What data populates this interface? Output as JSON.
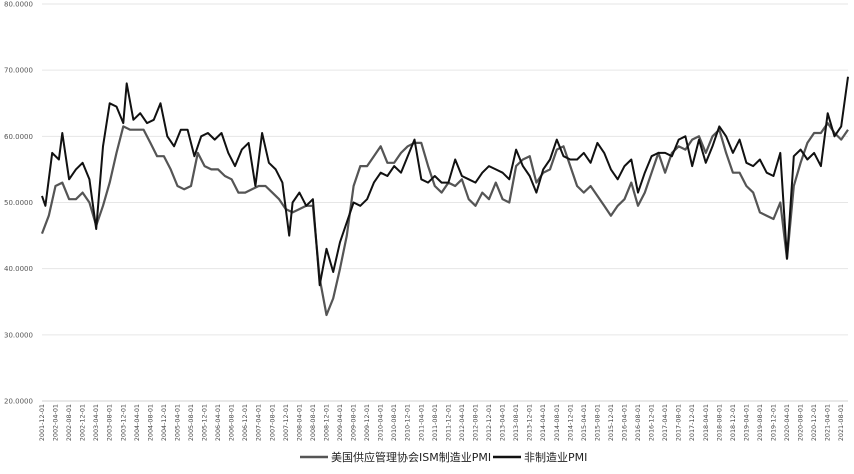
{
  "chart_data": {
    "type": "line",
    "title": "",
    "xlabel": "",
    "ylabel": "",
    "ylim": [
      20,
      80
    ],
    "y_ticks": [
      "20.0000",
      "30.0000",
      "40.0000",
      "50.0000",
      "60.0000",
      "70.0000",
      "80.0000"
    ],
    "grid": "horizontal",
    "legend_position": "bottom",
    "x_start": "2001-12",
    "x_end": "2021-10",
    "x_ticks": [
      "2001-12-01",
      "2002-04-01",
      "2002-08-01",
      "2002-12-01",
      "2003-04-01",
      "2003-08-01",
      "2003-12-01",
      "2004-04-01",
      "2004-08-01",
      "2004-12-01",
      "2005-04-01",
      "2005-08-01",
      "2005-12-01",
      "2006-04-01",
      "2006-08-01",
      "2006-12-01",
      "2007-04-01",
      "2007-08-01",
      "2007-12-01",
      "2008-04-01",
      "2008-08-01",
      "2008-12-01",
      "2009-04-01",
      "2009-08-01",
      "2009-12-01",
      "2010-04-01",
      "2010-08-01",
      "2010-12-01",
      "2011-04-01",
      "2011-08-01",
      "2011-12-01",
      "2012-04-01",
      "2012-08-01",
      "2012-12-01",
      "2013-04-01",
      "2013-08-01",
      "2013-12-01",
      "2014-04-01",
      "2014-08-01",
      "2014-12-01",
      "2015-04-01",
      "2015-08-01",
      "2015-12-01",
      "2016-04-01",
      "2016-08-01",
      "2016-12-01",
      "2017-04-01",
      "2017-08-01",
      "2017-12-01",
      "2018-04-01",
      "2018-08-01",
      "2018-12-01",
      "2019-04-01",
      "2019-08-01",
      "2019-12-01",
      "2020-04-01",
      "2020-08-01",
      "2020-12-01",
      "2021-04-01",
      "2021-08-01"
    ],
    "series": [
      {
        "name": "美国供应管理协会ISM制造业PMI",
        "color": "#555555",
        "points": [
          [
            "2001-12",
            45.3
          ],
          [
            "2002-02",
            48.0
          ],
          [
            "2002-04",
            52.5
          ],
          [
            "2002-06",
            53.0
          ],
          [
            "2002-08",
            50.5
          ],
          [
            "2002-10",
            50.5
          ],
          [
            "2002-12",
            51.5
          ],
          [
            "2003-02",
            50.0
          ],
          [
            "2003-04",
            46.5
          ],
          [
            "2003-06",
            49.5
          ],
          [
            "2003-08",
            53.0
          ],
          [
            "2003-10",
            57.5
          ],
          [
            "2003-12",
            61.5
          ],
          [
            "2004-02",
            61.0
          ],
          [
            "2004-04",
            61.0
          ],
          [
            "2004-06",
            61.0
          ],
          [
            "2004-08",
            59.0
          ],
          [
            "2004-10",
            57.0
          ],
          [
            "2004-12",
            57.0
          ],
          [
            "2005-02",
            55.0
          ],
          [
            "2005-04",
            52.5
          ],
          [
            "2005-06",
            52.0
          ],
          [
            "2005-08",
            52.5
          ],
          [
            "2005-10",
            57.5
          ],
          [
            "2005-12",
            55.5
          ],
          [
            "2006-02",
            55.0
          ],
          [
            "2006-04",
            55.0
          ],
          [
            "2006-06",
            54.0
          ],
          [
            "2006-08",
            53.5
          ],
          [
            "2006-10",
            51.5
          ],
          [
            "2006-12",
            51.5
          ],
          [
            "2007-02",
            52.0
          ],
          [
            "2007-04",
            52.5
          ],
          [
            "2007-06",
            52.5
          ],
          [
            "2007-08",
            51.5
          ],
          [
            "2007-10",
            50.5
          ],
          [
            "2007-12",
            49.0
          ],
          [
            "2008-02",
            48.5
          ],
          [
            "2008-04",
            49.0
          ],
          [
            "2008-06",
            49.5
          ],
          [
            "2008-08",
            49.5
          ],
          [
            "2008-10",
            38.5
          ],
          [
            "2008-12",
            33.0
          ],
          [
            "2009-02",
            35.5
          ],
          [
            "2009-04",
            40.0
          ],
          [
            "2009-06",
            45.0
          ],
          [
            "2009-08",
            52.5
          ],
          [
            "2009-10",
            55.5
          ],
          [
            "2009-12",
            55.5
          ],
          [
            "2010-02",
            57.0
          ],
          [
            "2010-04",
            58.5
          ],
          [
            "2010-06",
            56.0
          ],
          [
            "2010-08",
            56.0
          ],
          [
            "2010-10",
            57.5
          ],
          [
            "2010-12",
            58.5
          ],
          [
            "2011-02",
            59.0
          ],
          [
            "2011-04",
            59.0
          ],
          [
            "2011-06",
            55.5
          ],
          [
            "2011-08",
            52.5
          ],
          [
            "2011-10",
            51.5
          ],
          [
            "2011-12",
            53.0
          ],
          [
            "2012-02",
            52.5
          ],
          [
            "2012-04",
            53.5
          ],
          [
            "2012-06",
            50.5
          ],
          [
            "2012-08",
            49.5
          ],
          [
            "2012-10",
            51.5
          ],
          [
            "2012-12",
            50.5
          ],
          [
            "2013-02",
            53.0
          ],
          [
            "2013-04",
            50.5
          ],
          [
            "2013-06",
            50.0
          ],
          [
            "2013-08",
            55.5
          ],
          [
            "2013-10",
            56.5
          ],
          [
            "2013-12",
            57.0
          ],
          [
            "2014-02",
            53.0
          ],
          [
            "2014-04",
            54.5
          ],
          [
            "2014-06",
            55.0
          ],
          [
            "2014-08",
            58.0
          ],
          [
            "2014-10",
            58.5
          ],
          [
            "2014-12",
            55.5
          ],
          [
            "2015-02",
            52.5
          ],
          [
            "2015-04",
            51.5
          ],
          [
            "2015-06",
            52.5
          ],
          [
            "2015-08",
            51.0
          ],
          [
            "2015-10",
            49.5
          ],
          [
            "2015-12",
            48.0
          ],
          [
            "2016-02",
            49.5
          ],
          [
            "2016-04",
            50.5
          ],
          [
            "2016-06",
            53.0
          ],
          [
            "2016-08",
            49.5
          ],
          [
            "2016-10",
            51.5
          ],
          [
            "2016-12",
            54.5
          ],
          [
            "2017-02",
            57.5
          ],
          [
            "2017-04",
            54.5
          ],
          [
            "2017-06",
            57.5
          ],
          [
            "2017-08",
            58.5
          ],
          [
            "2017-10",
            58.0
          ],
          [
            "2017-12",
            59.5
          ],
          [
            "2018-02",
            60.0
          ],
          [
            "2018-04",
            57.5
          ],
          [
            "2018-06",
            60.0
          ],
          [
            "2018-08",
            61.0
          ],
          [
            "2018-10",
            57.5
          ],
          [
            "2018-12",
            54.5
          ],
          [
            "2019-02",
            54.5
          ],
          [
            "2019-04",
            52.5
          ],
          [
            "2019-06",
            51.5
          ],
          [
            "2019-08",
            48.5
          ],
          [
            "2019-10",
            48.0
          ],
          [
            "2019-12",
            47.5
          ],
          [
            "2020-02",
            50.0
          ],
          [
            "2020-04",
            41.5
          ],
          [
            "2020-06",
            52.5
          ],
          [
            "2020-08",
            56.0
          ],
          [
            "2020-10",
            59.0
          ],
          [
            "2020-12",
            60.5
          ],
          [
            "2021-02",
            60.5
          ],
          [
            "2021-04",
            62.0
          ],
          [
            "2021-06",
            60.5
          ],
          [
            "2021-08",
            59.5
          ],
          [
            "2021-10",
            61.0
          ]
        ]
      },
      {
        "name": "非制造业PMI",
        "color": "#111111",
        "points": [
          [
            "2001-12",
            51.0
          ],
          [
            "2002-01",
            49.5
          ],
          [
            "2002-03",
            57.5
          ],
          [
            "2002-05",
            56.5
          ],
          [
            "2002-06",
            60.5
          ],
          [
            "2002-08",
            53.5
          ],
          [
            "2002-10",
            55.0
          ],
          [
            "2002-12",
            56.0
          ],
          [
            "2003-02",
            53.5
          ],
          [
            "2003-04",
            46.0
          ],
          [
            "2003-06",
            58.5
          ],
          [
            "2003-08",
            65.0
          ],
          [
            "2003-10",
            64.5
          ],
          [
            "2003-12",
            62.0
          ],
          [
            "2004-01",
            68.0
          ],
          [
            "2004-03",
            62.5
          ],
          [
            "2004-05",
            63.5
          ],
          [
            "2004-07",
            62.0
          ],
          [
            "2004-09",
            62.5
          ],
          [
            "2004-11",
            65.0
          ],
          [
            "2005-01",
            60.0
          ],
          [
            "2005-03",
            58.5
          ],
          [
            "2005-05",
            61.0
          ],
          [
            "2005-07",
            61.0
          ],
          [
            "2005-09",
            57.0
          ],
          [
            "2005-11",
            60.0
          ],
          [
            "2006-01",
            60.5
          ],
          [
            "2006-03",
            59.5
          ],
          [
            "2006-05",
            60.5
          ],
          [
            "2006-07",
            57.5
          ],
          [
            "2006-09",
            55.5
          ],
          [
            "2006-11",
            58.0
          ],
          [
            "2007-01",
            59.0
          ],
          [
            "2007-03",
            52.5
          ],
          [
            "2007-05",
            60.5
          ],
          [
            "2007-07",
            56.0
          ],
          [
            "2007-09",
            55.0
          ],
          [
            "2007-11",
            53.0
          ],
          [
            "2008-01",
            45.0
          ],
          [
            "2008-02",
            50.0
          ],
          [
            "2008-04",
            51.5
          ],
          [
            "2008-06",
            49.5
          ],
          [
            "2008-08",
            50.5
          ],
          [
            "2008-10",
            37.5
          ],
          [
            "2008-12",
            43.0
          ],
          [
            "2009-02",
            39.5
          ],
          [
            "2009-04",
            44.0
          ],
          [
            "2009-06",
            47.0
          ],
          [
            "2009-08",
            50.0
          ],
          [
            "2009-10",
            49.5
          ],
          [
            "2009-12",
            50.5
          ],
          [
            "2010-02",
            53.0
          ],
          [
            "2010-04",
            54.5
          ],
          [
            "2010-06",
            54.0
          ],
          [
            "2010-08",
            55.5
          ],
          [
            "2010-10",
            54.5
          ],
          [
            "2010-12",
            57.0
          ],
          [
            "2011-02",
            59.5
          ],
          [
            "2011-04",
            53.5
          ],
          [
            "2011-06",
            53.0
          ],
          [
            "2011-08",
            54.0
          ],
          [
            "2011-10",
            53.0
          ],
          [
            "2011-12",
            53.0
          ],
          [
            "2012-02",
            56.5
          ],
          [
            "2012-04",
            54.0
          ],
          [
            "2012-06",
            53.5
          ],
          [
            "2012-08",
            53.0
          ],
          [
            "2012-10",
            54.5
          ],
          [
            "2012-12",
            55.5
          ],
          [
            "2013-02",
            55.0
          ],
          [
            "2013-04",
            54.5
          ],
          [
            "2013-06",
            53.5
          ],
          [
            "2013-08",
            58.0
          ],
          [
            "2013-10",
            55.5
          ],
          [
            "2013-12",
            54.0
          ],
          [
            "2014-02",
            51.5
          ],
          [
            "2014-04",
            55.0
          ],
          [
            "2014-06",
            56.5
          ],
          [
            "2014-08",
            59.5
          ],
          [
            "2014-10",
            57.0
          ],
          [
            "2014-12",
            56.5
          ],
          [
            "2015-02",
            56.5
          ],
          [
            "2015-04",
            57.5
          ],
          [
            "2015-06",
            56.0
          ],
          [
            "2015-08",
            59.0
          ],
          [
            "2015-10",
            57.5
          ],
          [
            "2015-12",
            55.0
          ],
          [
            "2016-02",
            53.5
          ],
          [
            "2016-04",
            55.5
          ],
          [
            "2016-06",
            56.5
          ],
          [
            "2016-08",
            51.5
          ],
          [
            "2016-10",
            54.5
          ],
          [
            "2016-12",
            57.0
          ],
          [
            "2017-02",
            57.5
          ],
          [
            "2017-04",
            57.5
          ],
          [
            "2017-06",
            57.0
          ],
          [
            "2017-08",
            59.5
          ],
          [
            "2017-10",
            60.0
          ],
          [
            "2017-12",
            55.5
          ],
          [
            "2018-02",
            59.5
          ],
          [
            "2018-04",
            56.0
          ],
          [
            "2018-06",
            58.5
          ],
          [
            "2018-08",
            61.5
          ],
          [
            "2018-10",
            60.0
          ],
          [
            "2018-12",
            57.5
          ],
          [
            "2019-02",
            59.5
          ],
          [
            "2019-04",
            56.0
          ],
          [
            "2019-06",
            55.5
          ],
          [
            "2019-08",
            56.5
          ],
          [
            "2019-10",
            54.5
          ],
          [
            "2019-12",
            54.0
          ],
          [
            "2020-02",
            57.5
          ],
          [
            "2020-04",
            41.5
          ],
          [
            "2020-06",
            57.0
          ],
          [
            "2020-08",
            58.0
          ],
          [
            "2020-10",
            56.5
          ],
          [
            "2020-12",
            57.5
          ],
          [
            "2021-02",
            55.5
          ],
          [
            "2021-04",
            63.5
          ],
          [
            "2021-06",
            60.0
          ],
          [
            "2021-08",
            61.5
          ],
          [
            "2021-10",
            69.0
          ]
        ]
      }
    ]
  }
}
